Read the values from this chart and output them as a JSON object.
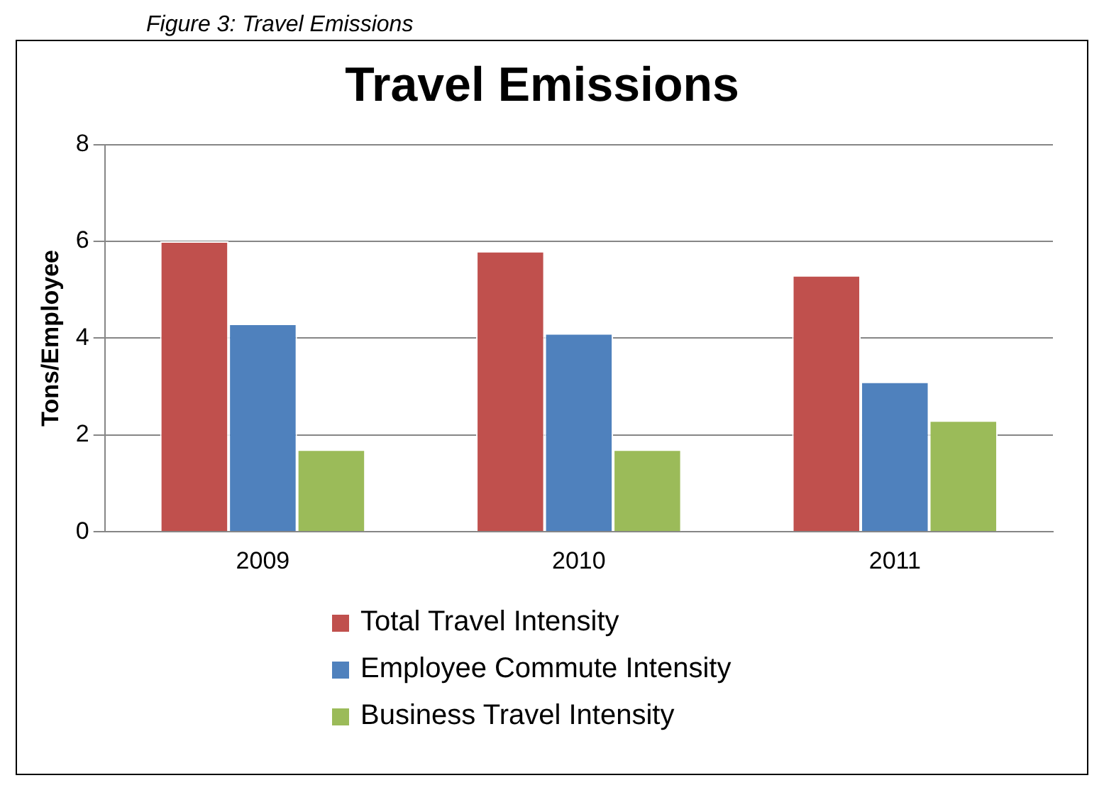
{
  "chart_data": {
    "type": "bar",
    "title": "Travel Emissions",
    "ylabel": "Tons/Employee",
    "annotations": [
      "Figure 3: Travel Emissions"
    ],
    "categories": [
      "2009",
      "2010",
      "2011"
    ],
    "series": [
      {
        "name": "Total Travel Intensity",
        "color": "#c0504d",
        "values": [
          6.0,
          5.8,
          5.3
        ]
      },
      {
        "name": "Employee Commute Intensity",
        "color": "#4f81bd",
        "values": [
          4.3,
          4.1,
          3.1
        ]
      },
      {
        "name": "Business Travel Intensity",
        "color": "#9bbb59",
        "values": [
          1.7,
          1.7,
          2.3
        ]
      }
    ],
    "ylim": [
      0,
      8
    ],
    "yticks": [
      0,
      2,
      4,
      6,
      8
    ],
    "grid": "y",
    "legend": "bottom"
  }
}
